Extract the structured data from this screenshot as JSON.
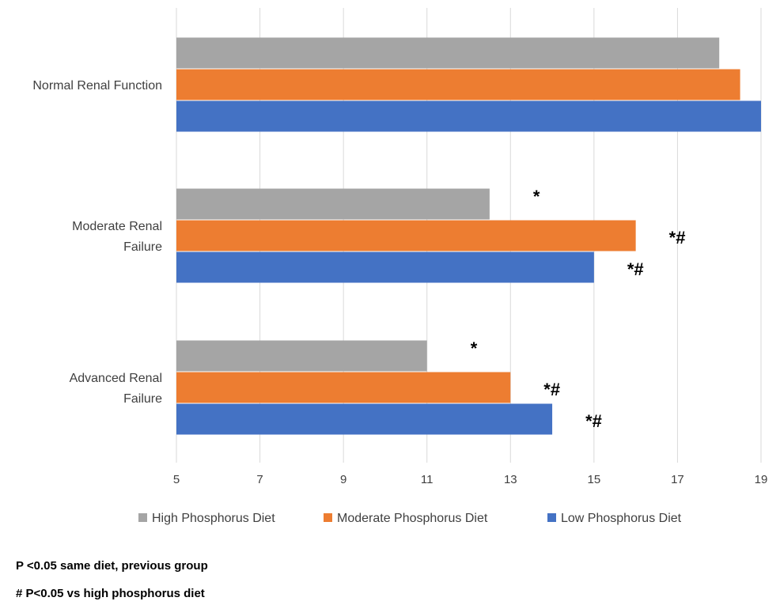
{
  "chart_data": {
    "type": "bar",
    "orientation": "horizontal",
    "categories": [
      "Normal Renal Function",
      "Moderate Renal Failure",
      "Advanced Renal Failure"
    ],
    "category_lines": [
      [
        "Normal Renal Function"
      ],
      [
        "Moderate Renal",
        "Failure"
      ],
      [
        "Advanced Renal",
        "Failure"
      ]
    ],
    "series": [
      {
        "name": "High Phosphorus Diet",
        "color": "#A5A5A5",
        "values": [
          18,
          12.5,
          11
        ],
        "annotations": [
          "",
          "*",
          "*"
        ]
      },
      {
        "name": "Moderate Phosphorus Diet",
        "color": "#ED7D31",
        "values": [
          18.5,
          16,
          13
        ],
        "annotations": [
          "",
          "*#",
          "*#"
        ]
      },
      {
        "name": "Low Phosphorus Diet",
        "color": "#4472C4",
        "values": [
          19,
          15,
          14
        ],
        "annotations": [
          "",
          "*#",
          "*#"
        ]
      }
    ],
    "xlim": [
      5,
      19
    ],
    "xticks": [
      5,
      7,
      9,
      11,
      13,
      15,
      17,
      19
    ],
    "grid": "vertical",
    "legend_position": "bottom"
  },
  "footnotes": [
    "P <0.05 same diet, previous group",
    "# P<0.05 vs high phosphorus diet"
  ]
}
